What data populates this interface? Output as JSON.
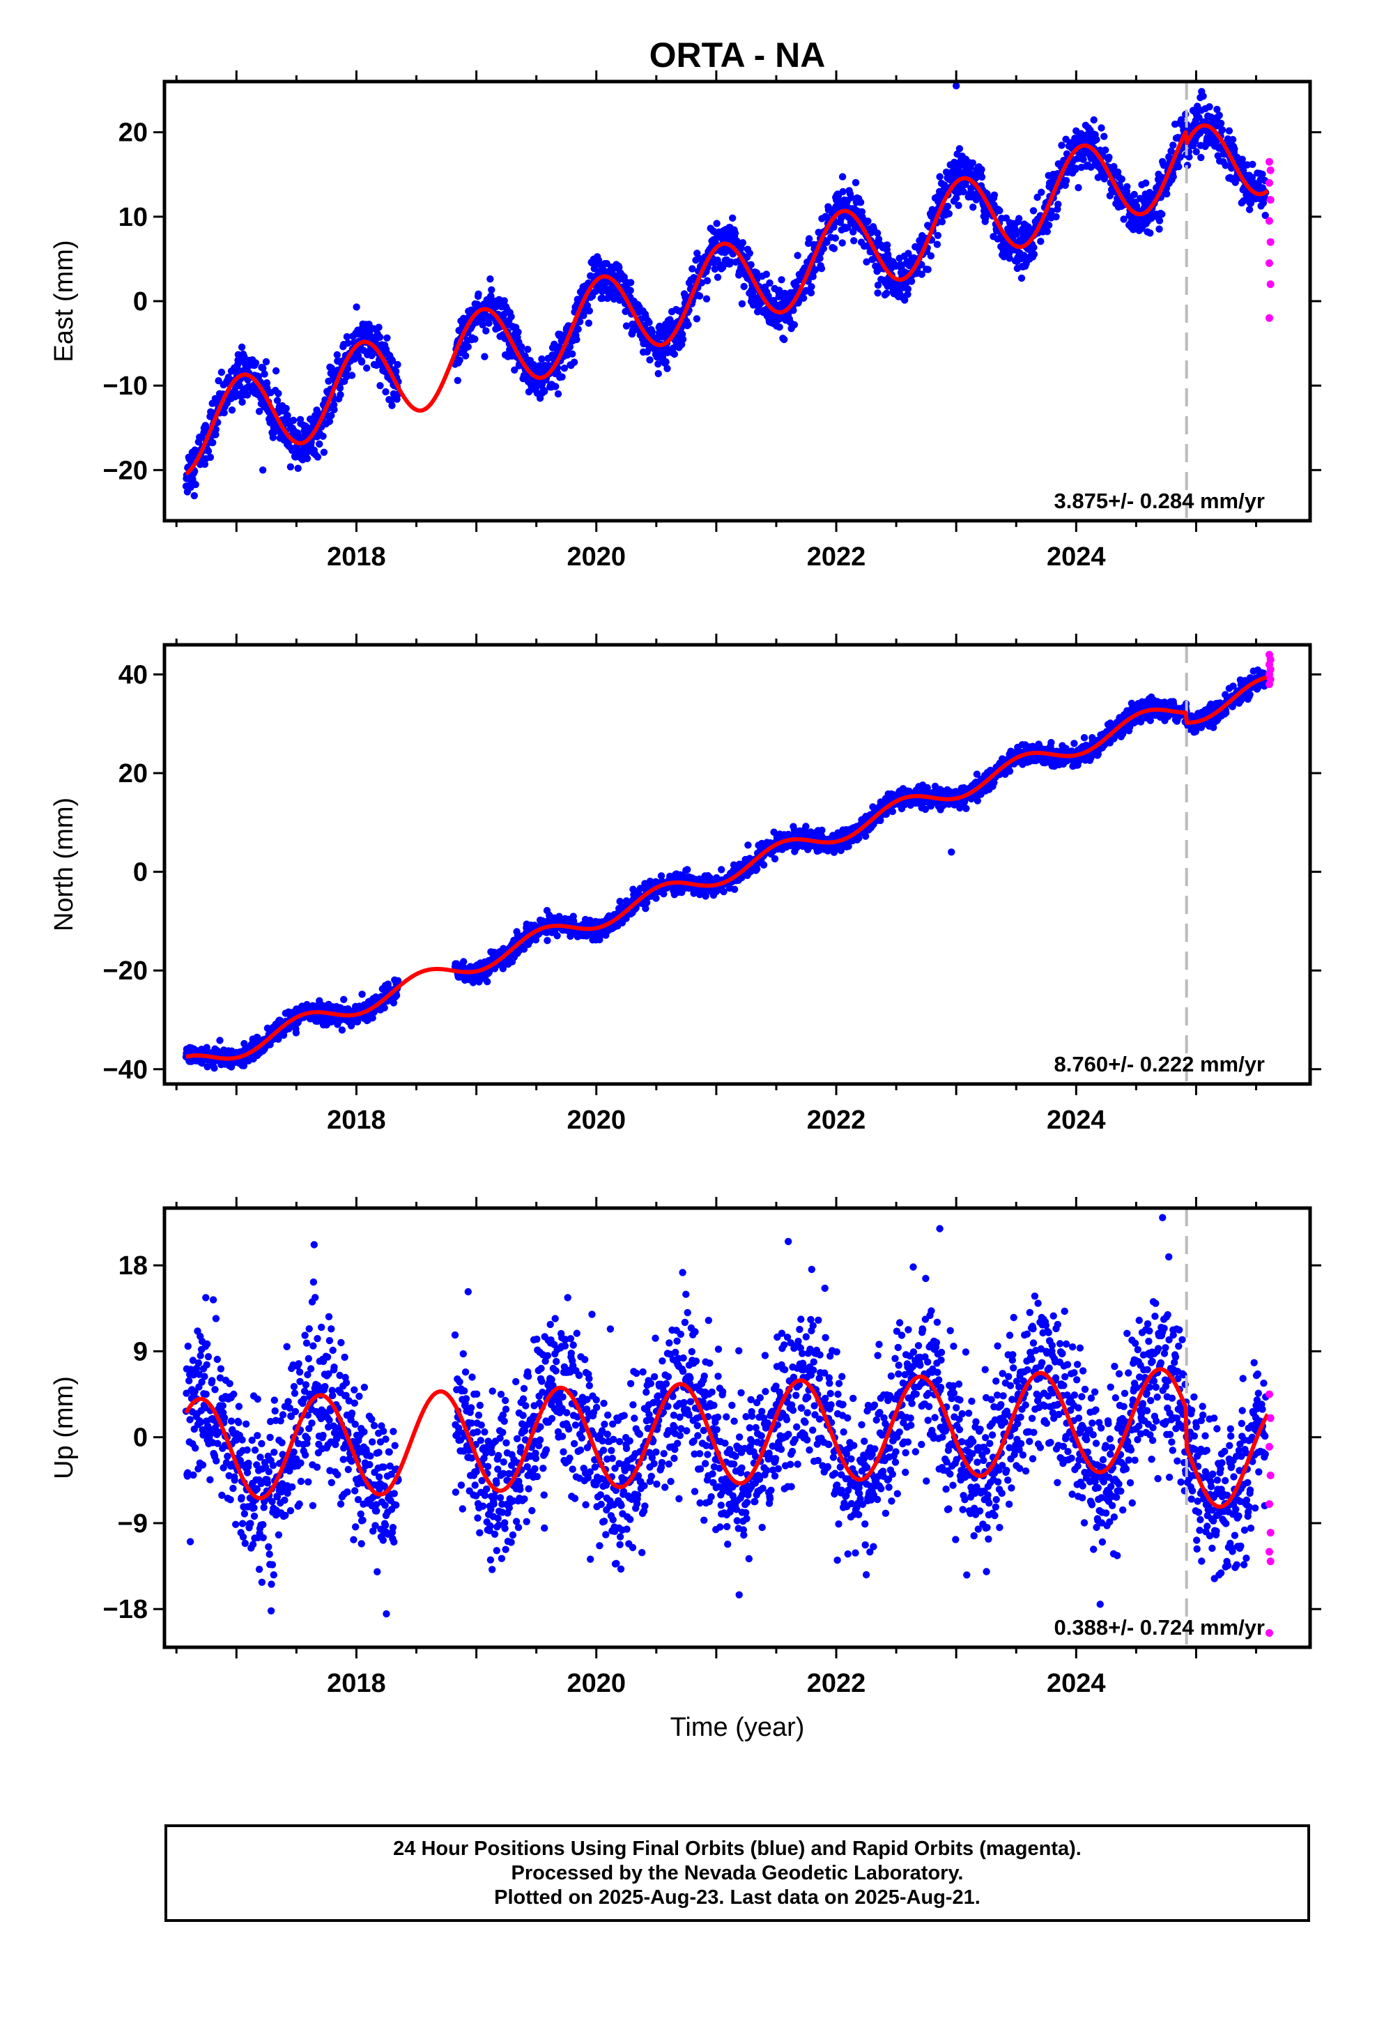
{
  "title": "ORTA - NA",
  "xlabel": "Time (year)",
  "colors": {
    "final_orbits": "#0000ff",
    "rapid_orbits": "#ff00ff",
    "model": "#ff0000",
    "break_line": "#bbbbbb",
    "frame": "#000000"
  },
  "footer": {
    "line1": "24 Hour Positions Using Final Orbits (blue) and Rapid Orbits (magenta).",
    "line2": "Processed by the Nevada Geodetic Laboratory.",
    "line3": "Plotted on 2025-Aug-23. Last data on 2025-Aug-21."
  },
  "chart_data": [
    {
      "type": "scatter",
      "panel": "east",
      "ylabel": "East (mm)",
      "xlim": [
        2016.4,
        2025.95
      ],
      "ylim": [
        -26,
        26
      ],
      "xticks": [
        2018,
        2020,
        2022,
        2024
      ],
      "yticks": [
        -20,
        -10,
        0,
        10,
        20
      ],
      "rate_text": "3.875+/- 0.284 mm/yr",
      "equipment_break": 2024.92,
      "data_start": 2016.58,
      "gap": [
        2018.35,
        2018.82
      ],
      "rapid_start": 2025.55,
      "final_end": 2025.58,
      "model": {
        "t0": 2020.0,
        "offset": -2.3,
        "rate": 3.875,
        "annual_amp": 5.0,
        "annual_peak": 0.05,
        "end_break": {
          "at": 2024.92,
          "jump": -1.5
        },
        "data_end": 2025.6
      },
      "noise_sd": 1.4,
      "rapid_values": [
        16.5,
        15.5,
        14,
        12,
        9.5,
        7,
        4.5,
        2,
        -2
      ],
      "outliers": [
        {
          "x": 2023.0,
          "y": 25.5
        },
        {
          "x": 2022.98,
          "y": 16
        },
        {
          "x": 2017.22,
          "y": -20
        }
      ]
    },
    {
      "type": "scatter",
      "panel": "north",
      "ylabel": "North (mm)",
      "xlim": [
        2016.4,
        2025.95
      ],
      "ylim": [
        -43,
        46
      ],
      "xticks": [
        2018,
        2020,
        2022,
        2024
      ],
      "yticks": [
        -40,
        -20,
        0,
        20,
        40
      ],
      "rate_text": "8.760+/- 0.222 mm/yr",
      "equipment_break": 2024.92,
      "data_start": 2016.58,
      "gap": [
        2018.35,
        2018.82
      ],
      "rapid_start": 2025.55,
      "final_end": 2025.58,
      "model": {
        "t0": 2020.0,
        "offset": -9.5,
        "rate": 8.76,
        "annual_amp": 2.0,
        "annual_peak": 0.55,
        "end_break": {
          "at": 2024.92,
          "jump": -2.0
        },
        "data_end": 2025.6
      },
      "noise_sd": 1.0,
      "rapid_values": [
        44,
        43,
        42,
        41,
        40,
        39,
        38
      ],
      "outliers": [
        {
          "x": 2022.96,
          "y": 4
        }
      ]
    },
    {
      "type": "scatter",
      "panel": "up",
      "ylabel": "Up (mm)",
      "xlim": [
        2016.4,
        2025.95
      ],
      "ylim": [
        -22,
        24
      ],
      "xticks": [
        2018,
        2020,
        2022,
        2024
      ],
      "yticks": [
        -18,
        -9,
        0,
        9,
        18
      ],
      "rate_text": "0.388+/- 0.724 mm/yr",
      "equipment_break": 2024.92,
      "data_start": 2016.58,
      "gap": [
        2018.35,
        2018.82
      ],
      "rapid_start": 2025.55,
      "final_end": 2025.58,
      "model": {
        "t0": 2020.0,
        "offset": 0.0,
        "rate": 0.388,
        "annual_amp": 5.3,
        "annual_peak": 0.7,
        "end_break": {
          "at": 2024.92,
          "jump": -4.0
        },
        "data_end": 2025.6
      },
      "noise_sd": 4.2,
      "rapid_values": [
        4.5,
        2,
        -1,
        -4,
        -7,
        -10,
        -12,
        -13,
        -20.5
      ],
      "outliers": [
        {
          "x": 2024.72,
          "y": 23
        },
        {
          "x": 2021.6,
          "y": 20.5
        },
        {
          "x": 2024.2,
          "y": -17.5
        },
        {
          "x": 2018.25,
          "y": -18.5
        }
      ]
    }
  ]
}
